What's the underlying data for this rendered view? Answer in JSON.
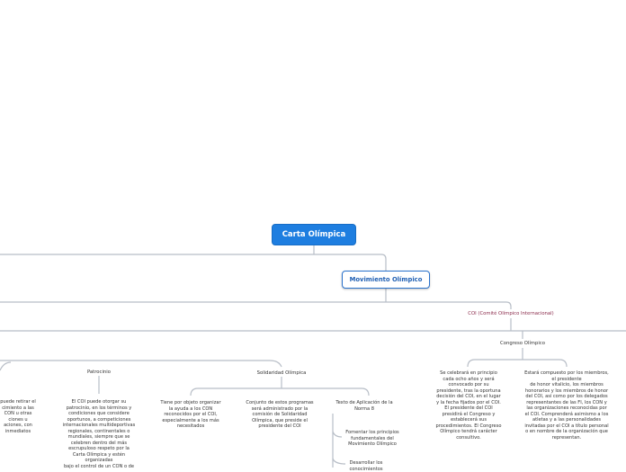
{
  "mindmap": {
    "root": "Carta Olímpica",
    "main_topic": "Movimiento Olímpico",
    "coi": "COI (Comité Olímpico Internacional)",
    "congreso": "Congreso Olímpico",
    "patrocinio": "Patrocinio",
    "solidaridad": "Solidaridad Olímpica",
    "norma8": "Texto de Aplicación de la\nNorma 8",
    "left_cut": "puede retirar el\ncimiento a las\nCON u otras\nciones u\naciones, con\ninmediatos",
    "patrocinio_text": "El COI puede otorgar su\npatrocinio, en los términos y\ncondiciones que considere\noportunos, a competiciones\ninternacionales multideportivas\nregionales, continentales o\nmundiales, siempre que se\ncelebren dentro del más\nescrupuloso respeto por la\nCarta Olímpica y estén\norganizadas\nbajo el control de un CON o de",
    "sol_a": "Tiene por objeto organizar\nla ayuda a los CON\nreconocidos por el COI,\nespecialmente a los más\nnecesitados",
    "sol_b": "Conjunto de estos programas\nserá administrado por la\ncomisión de Solidaridad\nOlímpica, que preside el\npresidente del COI",
    "norma8_a": "Fomentar los principios\nfundamentales del\nMovimiento Olímpico",
    "norma8_b": "Desarrollar los\nconocimientos",
    "congreso_a": "Se celebrará en principio\ncada ocho años y será\nconvocado por su\npresidente, tras la oportuna\ndecisión del COI, en el lugar\ny la fecha fijados por el COI.\nEl presidente del COI\npresidirá el Congreso y\nestablecerá sus\nprocedimientos. El Congreso\nOlímpico tendrá carácter\nconsultivo.",
    "congreso_b": "Estará compuesto por los miembros,\nel presidente\nde honor vitalicio, los miembros\nhonorarios y los miembros de honor\ndel COI, así como por los delegados\nrepresentantes de las FI, los CON y\nlas organizaciones reconocidas por\nel COI. Comprenderá asimismo a los\natletas y a las personalidades\ninvitadas por el COI a título personal\no en nombre de la organización que\nrepresentan."
  },
  "colors": {
    "root_bg": "#1e7ee0",
    "main_border": "#2a72cc",
    "link": "#b8bec7"
  }
}
